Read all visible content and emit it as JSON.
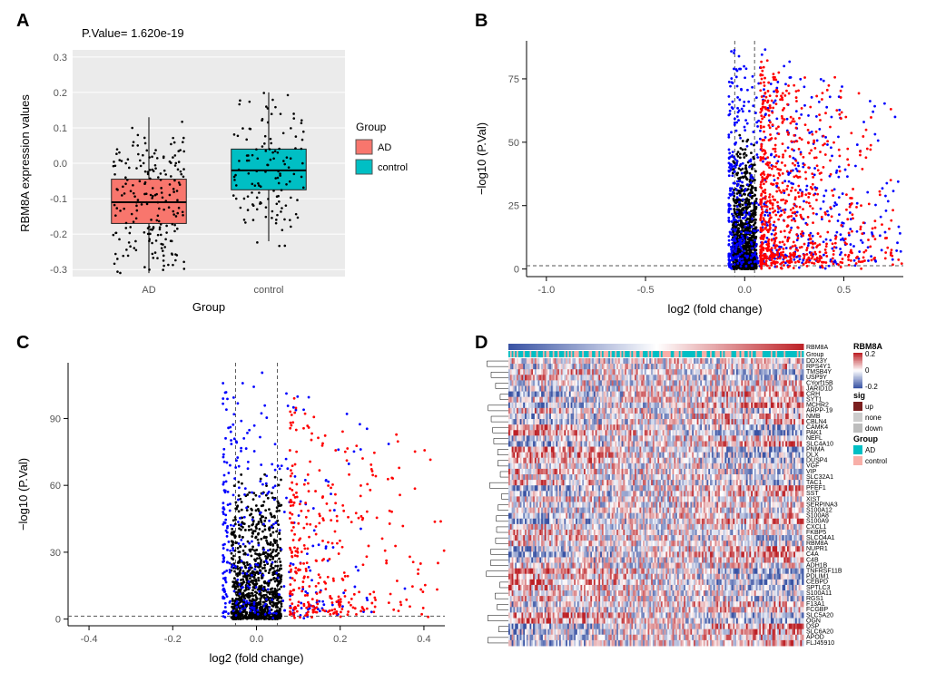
{
  "panelA": {
    "label": "A",
    "type": "boxplot",
    "title_pvalue": "P.Value= 1.620e-19",
    "xlabel": "Group",
    "ylabel": "RBM8A expression values",
    "background_color": "#ebebeb",
    "grid_color": "#ffffff",
    "ylim": [
      -0.32,
      0.32
    ],
    "yticks": [
      -0.3,
      -0.2,
      -0.1,
      0.0,
      0.1,
      0.2,
      0.3
    ],
    "categories": [
      "AD",
      "control"
    ],
    "legend_title": "Group",
    "boxes": [
      {
        "label": "AD",
        "color": "#f8766d",
        "q1": -0.17,
        "median": -0.11,
        "q3": -0.045,
        "whisker_low": -0.31,
        "whisker_high": 0.13
      },
      {
        "label": "control",
        "color": "#00bfc4",
        "q1": -0.075,
        "median": -0.02,
        "q3": 0.04,
        "whisker_low": -0.22,
        "whisker_high": 0.2
      }
    ],
    "jitter_seed": 42,
    "jitter_n": [
      210,
      130
    ],
    "label_fontsize": 13,
    "tick_fontsize": 11
  },
  "panelB": {
    "label": "B",
    "type": "scatter-volcano",
    "xlabel": "log2 (fold change)",
    "ylabel": "−log10 (P.Val)",
    "xlim": [
      -1.1,
      0.8
    ],
    "ylim": [
      -3,
      90
    ],
    "xticks": [
      -1.0,
      -0.5,
      0.0,
      0.5
    ],
    "yticks": [
      0,
      25,
      50,
      75
    ],
    "vlines": [
      -0.05,
      0.05
    ],
    "hline": 1.3,
    "colors": {
      "down": "#0000ff",
      "none": "#000000",
      "up": "#ff0000"
    },
    "point_radius": 1.4,
    "n_down": 700,
    "n_none": 900,
    "n_up": 800,
    "background_color": "#ffffff"
  },
  "panelC": {
    "label": "C",
    "type": "scatter-volcano",
    "xlabel": "log2 (fold change)",
    "ylabel": "−log10 (P.Val)",
    "xlim": [
      -0.45,
      0.45
    ],
    "ylim": [
      -3,
      115
    ],
    "xticks": [
      -0.4,
      -0.2,
      0.0,
      0.2,
      0.4
    ],
    "yticks": [
      0,
      30,
      60,
      90
    ],
    "vlines": [
      -0.05,
      0.05
    ],
    "hline": 1.3,
    "colors": {
      "down": "#0000ff",
      "none": "#000000",
      "up": "#ff0000"
    },
    "point_radius": 1.4,
    "n_down": 350,
    "n_none": 1000,
    "n_up": 350,
    "background_color": "#ffffff"
  },
  "panelD": {
    "label": "D",
    "type": "heatmap",
    "top_annotations": [
      "RBM8A",
      "Group"
    ],
    "legend_rbm8a_title": "RBM8A",
    "legend_rbm8a_scale": [
      0.2,
      0,
      -0.2
    ],
    "legend_rbm8a_colors": [
      "#bd2126",
      "#ffffff",
      "#3953a4"
    ],
    "legend_sig_title": "sig",
    "legend_sig_items": [
      "up",
      "none",
      "down"
    ],
    "legend_sig_colors": {
      "up": "#7a1f1f",
      "none": "#cccccc",
      "down": "#bdbdbd"
    },
    "legend_group_title": "Group",
    "legend_group_items": [
      "AD",
      "control"
    ],
    "legend_group_colors": {
      "AD": "#00bfc4",
      "control": "#f8afa8"
    },
    "heatmap_colors": {
      "low": "#3953a4",
      "mid": "#ffffff",
      "high": "#bd2126"
    },
    "row_labels": [
      "DDX3Y",
      "RPS4Y1",
      "TMSB4Y",
      "USP9Y",
      "CYorf15B",
      "JARID1D",
      "CRH",
      "SYT1",
      "MCHR2",
      "ARPP-19",
      "NMB",
      "CBLN4",
      "CAMK4",
      "PAK1",
      "NEFL",
      "SLC4A10",
      "PNMA",
      "DLX",
      "DUSP4",
      "VGF",
      "VIP",
      "SLC32A1",
      "TAC1",
      "PFEF1",
      "SST",
      "XIST",
      "SERPINA3",
      "S100A12",
      "S100A8",
      "S100A9",
      "CXCL1",
      "FKBP5",
      "SLCO4A1",
      "RBM8A",
      "NUPR1",
      "C4A",
      "C4B",
      "ADH1B",
      "TNFRSF11B",
      "PDLIM1",
      "CEBPD",
      "SPTLC3",
      "S100A11",
      "RGS1",
      "F13A1",
      "FCGBP",
      "SLC5A20",
      "OGN",
      "DSP",
      "SLC6A20",
      "APOD",
      "FLJ45910"
    ],
    "n_cols": 180,
    "dendrogram_width": 35,
    "row_fontsize": 7,
    "group_bar_colors": [
      "#00bfc4",
      "#f8afa8"
    ],
    "rbm8a_bar_colors": [
      "#3953a4",
      "#bd2126"
    ]
  }
}
